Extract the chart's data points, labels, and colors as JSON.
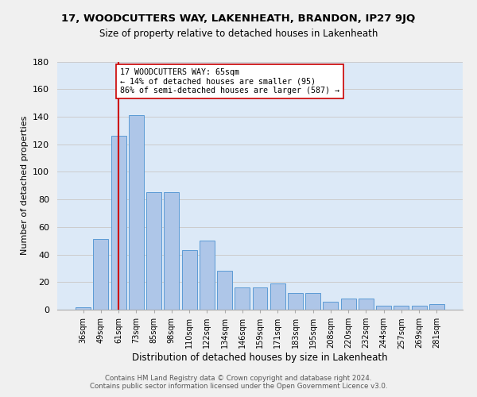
{
  "title": "17, WOODCUTTERS WAY, LAKENHEATH, BRANDON, IP27 9JQ",
  "subtitle": "Size of property relative to detached houses in Lakenheath",
  "xlabel": "Distribution of detached houses by size in Lakenheath",
  "ylabel": "Number of detached properties",
  "categories": [
    "36sqm",
    "49sqm",
    "61sqm",
    "73sqm",
    "85sqm",
    "98sqm",
    "110sqm",
    "122sqm",
    "134sqm",
    "146sqm",
    "159sqm",
    "171sqm",
    "183sqm",
    "195sqm",
    "208sqm",
    "220sqm",
    "232sqm",
    "244sqm",
    "257sqm",
    "269sqm",
    "281sqm"
  ],
  "values": [
    2,
    51,
    126,
    141,
    85,
    85,
    43,
    50,
    28,
    16,
    16,
    19,
    12,
    12,
    6,
    8,
    8,
    3,
    3,
    3,
    4
  ],
  "bar_color": "#aec6e8",
  "bar_edge_color": "#5b9bd5",
  "grid_color": "#cccccc",
  "bg_color": "#dce9f7",
  "fig_bg_color": "#f0f0f0",
  "vline_x": 2.0,
  "vline_color": "#cc0000",
  "annotation_text": "17 WOODCUTTERS WAY: 65sqm\n← 14% of detached houses are smaller (95)\n86% of semi-detached houses are larger (587) →",
  "annotation_box_color": "#ffffff",
  "annotation_box_edge": "#cc0000",
  "ylim": [
    0,
    180
  ],
  "yticks": [
    0,
    20,
    40,
    60,
    80,
    100,
    120,
    140,
    160,
    180
  ],
  "footer1": "Contains HM Land Registry data © Crown copyright and database right 2024.",
  "footer2": "Contains public sector information licensed under the Open Government Licence v3.0."
}
